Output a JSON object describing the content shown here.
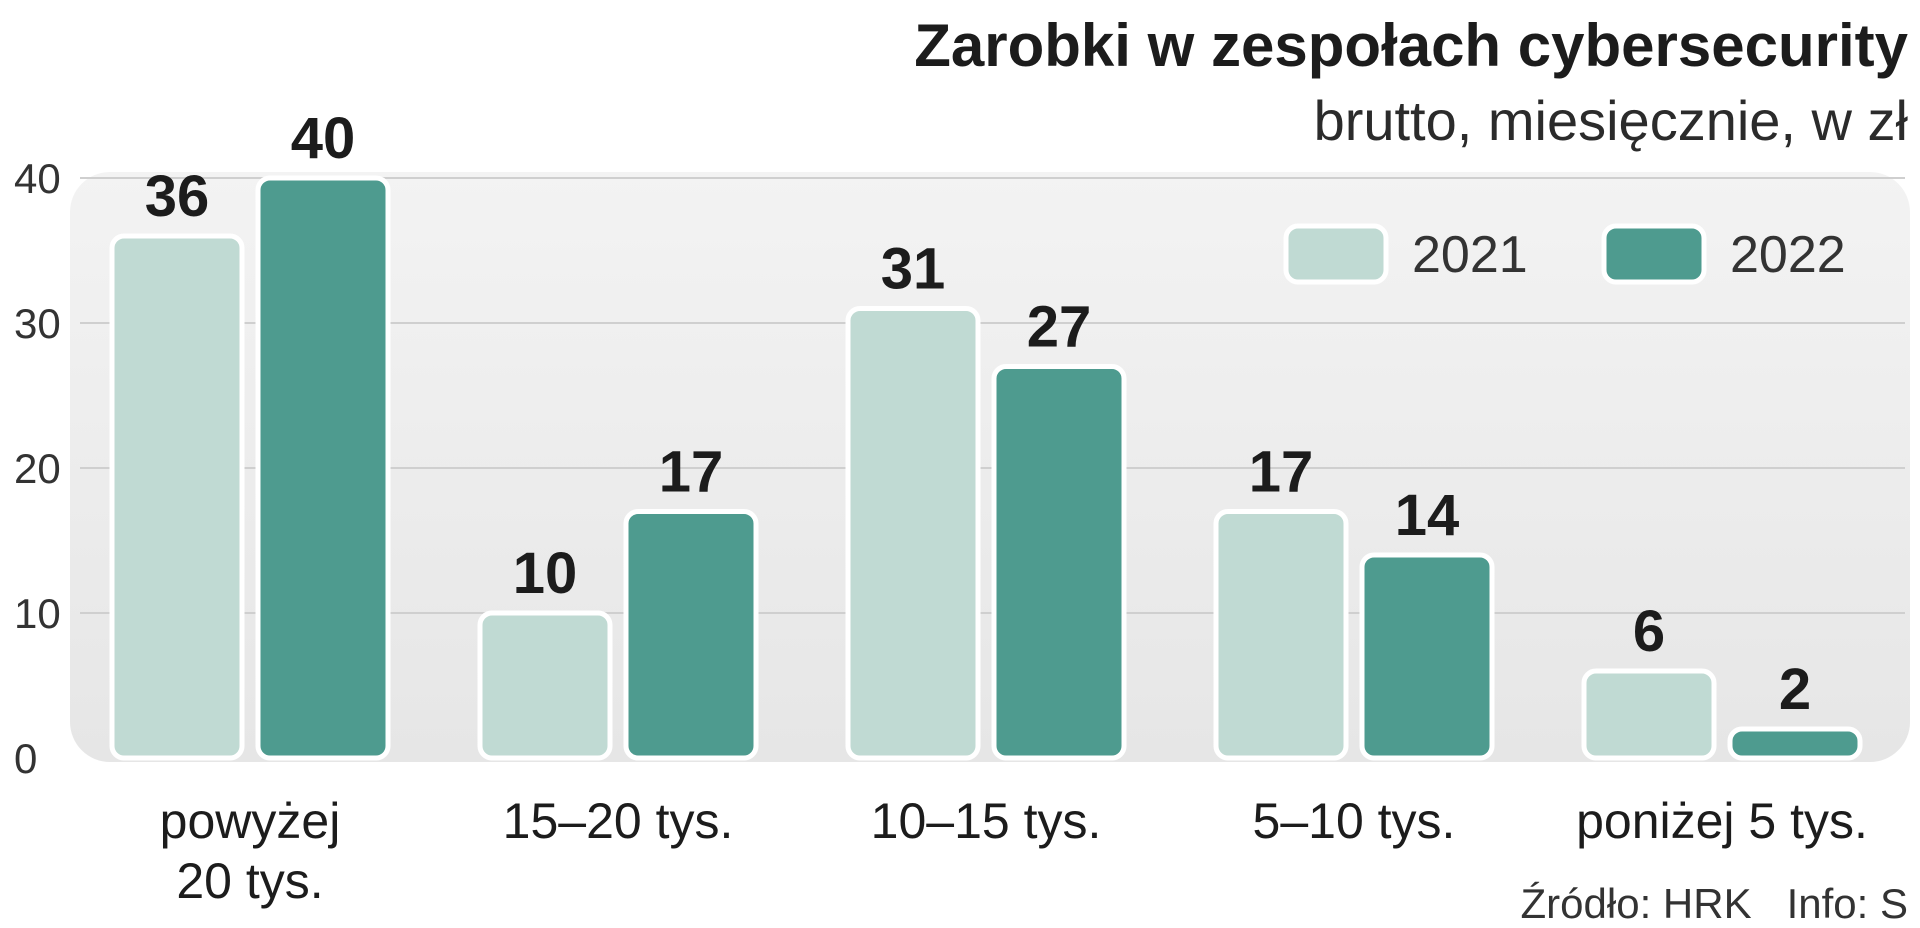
{
  "chart_data": {
    "type": "bar",
    "title": "Zarobki w zespołach cybersecurity",
    "subtitle": "brutto, miesięcznie, w zł",
    "categories": [
      [
        "powyżej",
        "20  tys."
      ],
      [
        "15–20 tys."
      ],
      [
        "10–15 tys."
      ],
      [
        "5–10 tys."
      ],
      [
        "poniżej 5 tys."
      ]
    ],
    "series": [
      {
        "name": "2021",
        "color": "#c0dad3",
        "values": [
          36,
          10,
          31,
          17,
          6
        ]
      },
      {
        "name": "2022",
        "color": "#4e9b8f",
        "values": [
          40,
          17,
          27,
          14,
          2
        ]
      }
    ],
    "y_ticks": [
      "0",
      "10",
      "20",
      "30",
      "40"
    ],
    "ylim": [
      0,
      40
    ],
    "grid": true,
    "legend_position": "top-right",
    "source": "Źródło: HRK   Info: S"
  }
}
